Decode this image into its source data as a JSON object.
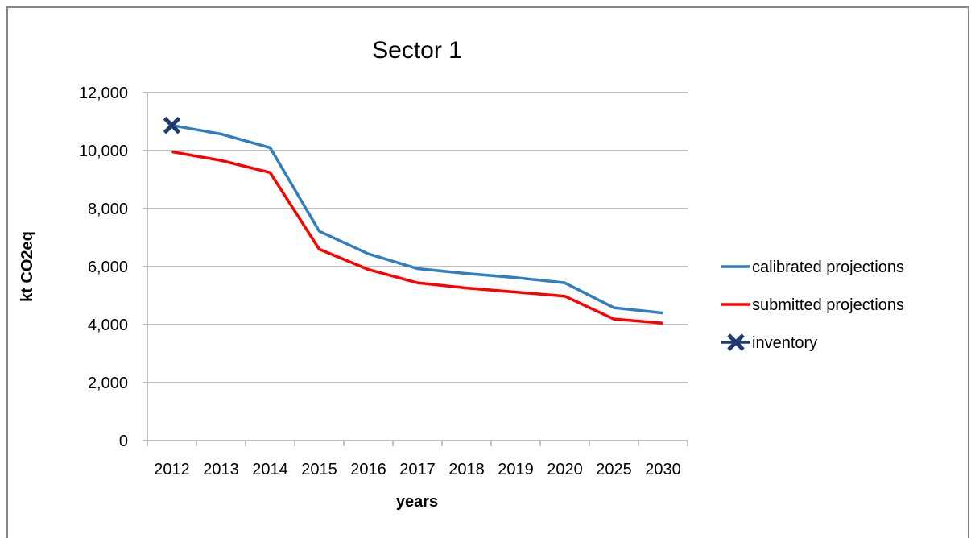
{
  "chart_data": {
    "type": "line",
    "title": "Sector 1",
    "xlabel": "years",
    "ylabel": "kt CO2eq",
    "categories": [
      "2012",
      "2013",
      "2014",
      "2015",
      "2016",
      "2017",
      "2018",
      "2019",
      "2020",
      "2025",
      "2030"
    ],
    "ylim": [
      0,
      12000
    ],
    "yticks": [
      0,
      2000,
      4000,
      6000,
      8000,
      10000,
      12000
    ],
    "ytick_labels": [
      "0",
      "2,000",
      "4,000",
      "6,000",
      "8,000",
      "10,000",
      "12,000"
    ],
    "grid": true,
    "legend_position": "right",
    "series": [
      {
        "name": "calibrated projections",
        "color": "#2E7EC1",
        "marker": "none",
        "values": [
          10870,
          10570,
          10100,
          7220,
          6440,
          5930,
          5760,
          5620,
          5440,
          4580,
          4400
        ]
      },
      {
        "name": "submitted projections",
        "color": "#FF0000",
        "marker": "none",
        "values": [
          9960,
          9660,
          9240,
          6600,
          5900,
          5440,
          5260,
          5120,
          4980,
          4190,
          4050
        ]
      },
      {
        "name": "inventory",
        "color": "#1F3A6E",
        "marker": "x",
        "values": [
          10870,
          null,
          null,
          null,
          null,
          null,
          null,
          null,
          null,
          null,
          null
        ]
      }
    ]
  }
}
